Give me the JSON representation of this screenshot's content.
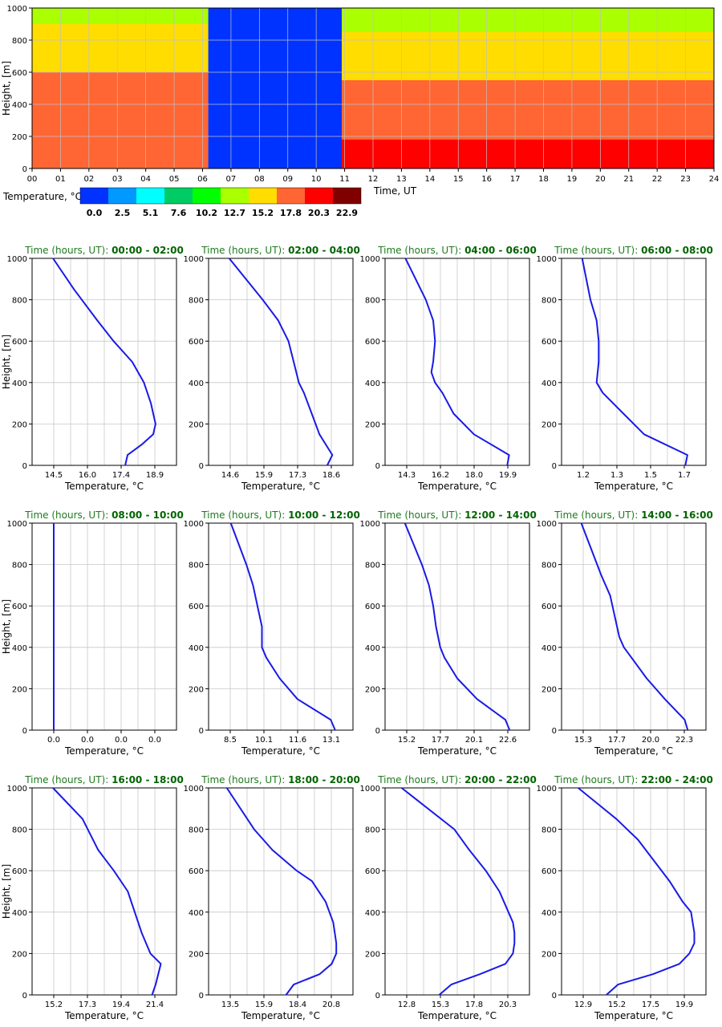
{
  "chart_data": [
    {
      "type": "heatmap",
      "ylabel": "Height, [m]",
      "xlabel": "Time, UT",
      "x_ticks": [
        "00",
        "01",
        "02",
        "03",
        "04",
        "05",
        "06",
        "07",
        "08",
        "09",
        "10",
        "11",
        "12",
        "13",
        "14",
        "15",
        "16",
        "17",
        "18",
        "19",
        "20",
        "21",
        "22",
        "23",
        "24"
      ],
      "y_ticks": [
        "0",
        "200",
        "400",
        "600",
        "800",
        "1000"
      ],
      "xlim": [
        0,
        24
      ],
      "ylim": [
        0,
        1000
      ],
      "grid": true,
      "colorbar": {
        "label": "Temperature, °C",
        "colors": [
          "#0033ff",
          "#0099ff",
          "#00ffff",
          "#00cc66",
          "#00ff00",
          "#aaff00",
          "#ffdd00",
          "#ff6633",
          "#ff0000",
          "#800000"
        ],
        "tick_labels": [
          "0.0",
          "2.5",
          "5.1",
          "7.6",
          "10.2",
          "12.7",
          "15.2",
          "17.8",
          "20.3",
          "22.9"
        ]
      },
      "regions": [
        {
          "from_hour": 0.0,
          "to_hour": 6.2,
          "bands": [
            {
              "top_m": 600,
              "color": "#ff6633"
            },
            {
              "top_m": 900,
              "color": "#ffdd00"
            },
            {
              "top_m": 1000,
              "color": "#aaff00"
            }
          ]
        },
        {
          "from_hour": 6.2,
          "to_hour": 10.9,
          "bands": [
            {
              "top_m": 1000,
              "color": "#0033ff"
            }
          ]
        },
        {
          "from_hour": 10.9,
          "to_hour": 24.0,
          "bands": [
            {
              "top_m": 180,
              "color": "#ff0000"
            },
            {
              "top_m": 550,
              "color": "#ff6633"
            },
            {
              "top_m": 850,
              "color": "#ffdd00"
            },
            {
              "top_m": 1000,
              "color": "#aaff00"
            }
          ]
        }
      ]
    },
    {
      "type": "line",
      "title_prefix": "Time (hours, UT): ",
      "title_range": "00:00 - 02:00",
      "xlabel": "Temperature, °C",
      "ylabel": "Height, [m]",
      "x_ticks": [
        "14.5",
        "16.0",
        "17.4",
        "18.9"
      ],
      "xlim": [
        13.6,
        19.8
      ],
      "ylim": [
        0,
        1000
      ],
      "x": [
        17.6,
        17.7,
        18.3,
        18.8,
        18.9,
        18.8,
        18.7,
        18.4,
        17.9,
        17.1,
        16.4,
        15.4,
        14.5
      ],
      "y": [
        0,
        50,
        100,
        150,
        200,
        250,
        300,
        400,
        500,
        600,
        700,
        850,
        1000
      ]
    },
    {
      "type": "line",
      "title_prefix": "Time (hours, UT): ",
      "title_range": "02:00 - 04:00",
      "xlabel": "Temperature, °C",
      "ylabel": "Height, [m]",
      "x_ticks": [
        "14.6",
        "15.9",
        "17.3",
        "18.6"
      ],
      "xlim": [
        13.8,
        19.4
      ],
      "ylim": [
        0,
        1000
      ],
      "x": [
        18.4,
        18.6,
        18.1,
        17.8,
        17.5,
        17.3,
        17.1,
        16.9,
        16.5,
        15.9,
        14.6
      ],
      "y": [
        0,
        50,
        150,
        250,
        350,
        400,
        500,
        600,
        700,
        800,
        1000
      ]
    },
    {
      "type": "line",
      "title_prefix": "Time (hours, UT): ",
      "title_range": "04:00 - 06:00",
      "xlabel": "Temperature, °C",
      "ylabel": "Height, [m]",
      "x_ticks": [
        "14.3",
        "16.2",
        "18.0",
        "19.9"
      ],
      "xlim": [
        13.2,
        21.0
      ],
      "ylim": [
        0,
        1000
      ],
      "x": [
        19.8,
        19.9,
        18.0,
        16.9,
        16.3,
        15.9,
        15.7,
        15.8,
        15.9,
        15.8,
        15.4,
        14.3
      ],
      "y": [
        0,
        50,
        150,
        250,
        350,
        400,
        450,
        500,
        600,
        700,
        800,
        1000
      ]
    },
    {
      "type": "line",
      "title_prefix": "Time (hours, UT): ",
      "title_range": "06:00 - 08:00",
      "xlabel": "Temperature, °C",
      "ylabel": "Height, [m]",
      "x_ticks": [
        "1.2",
        "1.3",
        "1.5",
        "1.7"
      ],
      "xlim": [
        1.1,
        1.8
      ],
      "ylim": [
        0,
        1000
      ],
      "x": [
        1.7,
        1.71,
        1.5,
        1.4,
        1.3,
        1.27,
        1.28,
        1.28,
        1.27,
        1.24,
        1.2
      ],
      "y": [
        0,
        50,
        150,
        250,
        350,
        400,
        500,
        600,
        700,
        800,
        1000
      ]
    },
    {
      "type": "line",
      "title_prefix": "Time (hours, UT): ",
      "title_range": "08:00 - 10:00",
      "xlabel": "Temperature, °C",
      "ylabel": "Height, [m]",
      "x_ticks": [
        "0.0",
        "0.0",
        "0.0",
        "0.0"
      ],
      "xlim": [
        -0.1,
        0.5
      ],
      "ylim": [
        0,
        1000
      ],
      "x": [
        0.0,
        0.0
      ],
      "y": [
        0,
        1000
      ]
    },
    {
      "type": "line",
      "title_prefix": "Time (hours, UT): ",
      "title_range": "10:00 - 12:00",
      "xlabel": "Temperature, °C",
      "ylabel": "Height, [m]",
      "x_ticks": [
        "8.5",
        "10.1",
        "11.6",
        "13.1"
      ],
      "xlim": [
        7.5,
        14.0
      ],
      "ylim": [
        0,
        1000
      ],
      "x": [
        13.2,
        13.0,
        11.5,
        10.7,
        10.1,
        9.9,
        9.9,
        9.7,
        9.5,
        9.2,
        8.5
      ],
      "y": [
        0,
        50,
        150,
        250,
        350,
        400,
        500,
        600,
        700,
        800,
        1000
      ]
    },
    {
      "type": "line",
      "title_prefix": "Time (hours, UT): ",
      "title_range": "12:00 - 14:00",
      "xlabel": "Temperature, °C",
      "ylabel": "Height, [m]",
      "x_ticks": [
        "15.2",
        "17.7",
        "20.1",
        "22.6"
      ],
      "xlim": [
        13.8,
        24.0
      ],
      "ylim": [
        0,
        1000
      ],
      "x": [
        22.6,
        22.3,
        20.3,
        18.9,
        18.0,
        17.7,
        17.4,
        17.2,
        16.9,
        16.4,
        15.2
      ],
      "y": [
        0,
        50,
        150,
        250,
        350,
        400,
        500,
        600,
        700,
        800,
        1000
      ]
    },
    {
      "type": "line",
      "title_prefix": "Time (hours, UT): ",
      "title_range": "14:00 - 16:00",
      "xlabel": "Temperature, °C",
      "ylabel": "Height, [m]",
      "x_ticks": [
        "15.3",
        "17.7",
        "20.0",
        "22.3"
      ],
      "xlim": [
        14.0,
        23.5
      ],
      "ylim": [
        0,
        1000
      ],
      "x": [
        22.3,
        22.1,
        20.8,
        19.6,
        18.6,
        18.1,
        17.8,
        17.5,
        17.2,
        16.6,
        15.3
      ],
      "y": [
        0,
        50,
        150,
        250,
        350,
        400,
        450,
        550,
        650,
        750,
        1000
      ]
    },
    {
      "type": "line",
      "title_prefix": "Time (hours, UT): ",
      "title_range": "16:00 - 18:00",
      "xlabel": "Temperature, °C",
      "ylabel": "Height, [m]",
      "x_ticks": [
        "15.2",
        "17.3",
        "19.4",
        "21.4"
      ],
      "xlim": [
        14.0,
        22.3
      ],
      "ylim": [
        0,
        1000
      ],
      "x": [
        20.9,
        21.1,
        21.4,
        20.8,
        20.3,
        19.5,
        18.7,
        17.8,
        16.9,
        15.2
      ],
      "y": [
        0,
        50,
        150,
        200,
        300,
        500,
        600,
        700,
        850,
        1000
      ]
    },
    {
      "type": "line",
      "title_prefix": "Time (hours, UT): ",
      "title_range": "18:00 - 20:00",
      "xlabel": "Temperature, °C",
      "ylabel": "Height, [m]",
      "x_ticks": [
        "13.5",
        "15.9",
        "18.4",
        "20.8"
      ],
      "xlim": [
        12.3,
        21.8
      ],
      "ylim": [
        0,
        1000
      ],
      "x": [
        17.4,
        17.9,
        19.6,
        20.4,
        20.7,
        20.7,
        20.5,
        20.0,
        19.1,
        18.1,
        16.5,
        15.3,
        13.5
      ],
      "y": [
        0,
        50,
        100,
        150,
        200,
        250,
        350,
        450,
        550,
        600,
        700,
        800,
        1000
      ]
    },
    {
      "type": "line",
      "title_prefix": "Time (hours, UT): ",
      "title_range": "20:00 - 22:00",
      "xlabel": "Temperature, °C",
      "ylabel": "Height, [m]",
      "x_ticks": [
        "12.8",
        "15.3",
        "17.8",
        "20.3"
      ],
      "xlim": [
        11.7,
        21.3
      ],
      "ylim": [
        0,
        1000
      ],
      "x": [
        15.3,
        16.1,
        18.0,
        19.7,
        20.2,
        20.3,
        20.3,
        20.2,
        19.9,
        19.3,
        18.4,
        17.3,
        16.3,
        12.8
      ],
      "y": [
        0,
        50,
        100,
        150,
        200,
        250,
        300,
        350,
        400,
        500,
        600,
        700,
        800,
        1000
      ]
    },
    {
      "type": "line",
      "title_prefix": "Time (hours, UT): ",
      "title_range": "22:00 - 24:00",
      "xlabel": "Temperature, °C",
      "ylabel": "Height, [m]",
      "x_ticks": [
        "12.9",
        "15.2",
        "17.5",
        "19.9"
      ],
      "xlim": [
        11.9,
        20.6
      ],
      "ylim": [
        0,
        1000
      ],
      "x": [
        14.6,
        15.3,
        17.4,
        19.0,
        19.6,
        19.9,
        19.9,
        19.7,
        19.2,
        18.4,
        16.5,
        15.2,
        12.9
      ],
      "y": [
        0,
        50,
        100,
        150,
        200,
        250,
        300,
        400,
        450,
        550,
        750,
        850,
        1000
      ]
    }
  ]
}
